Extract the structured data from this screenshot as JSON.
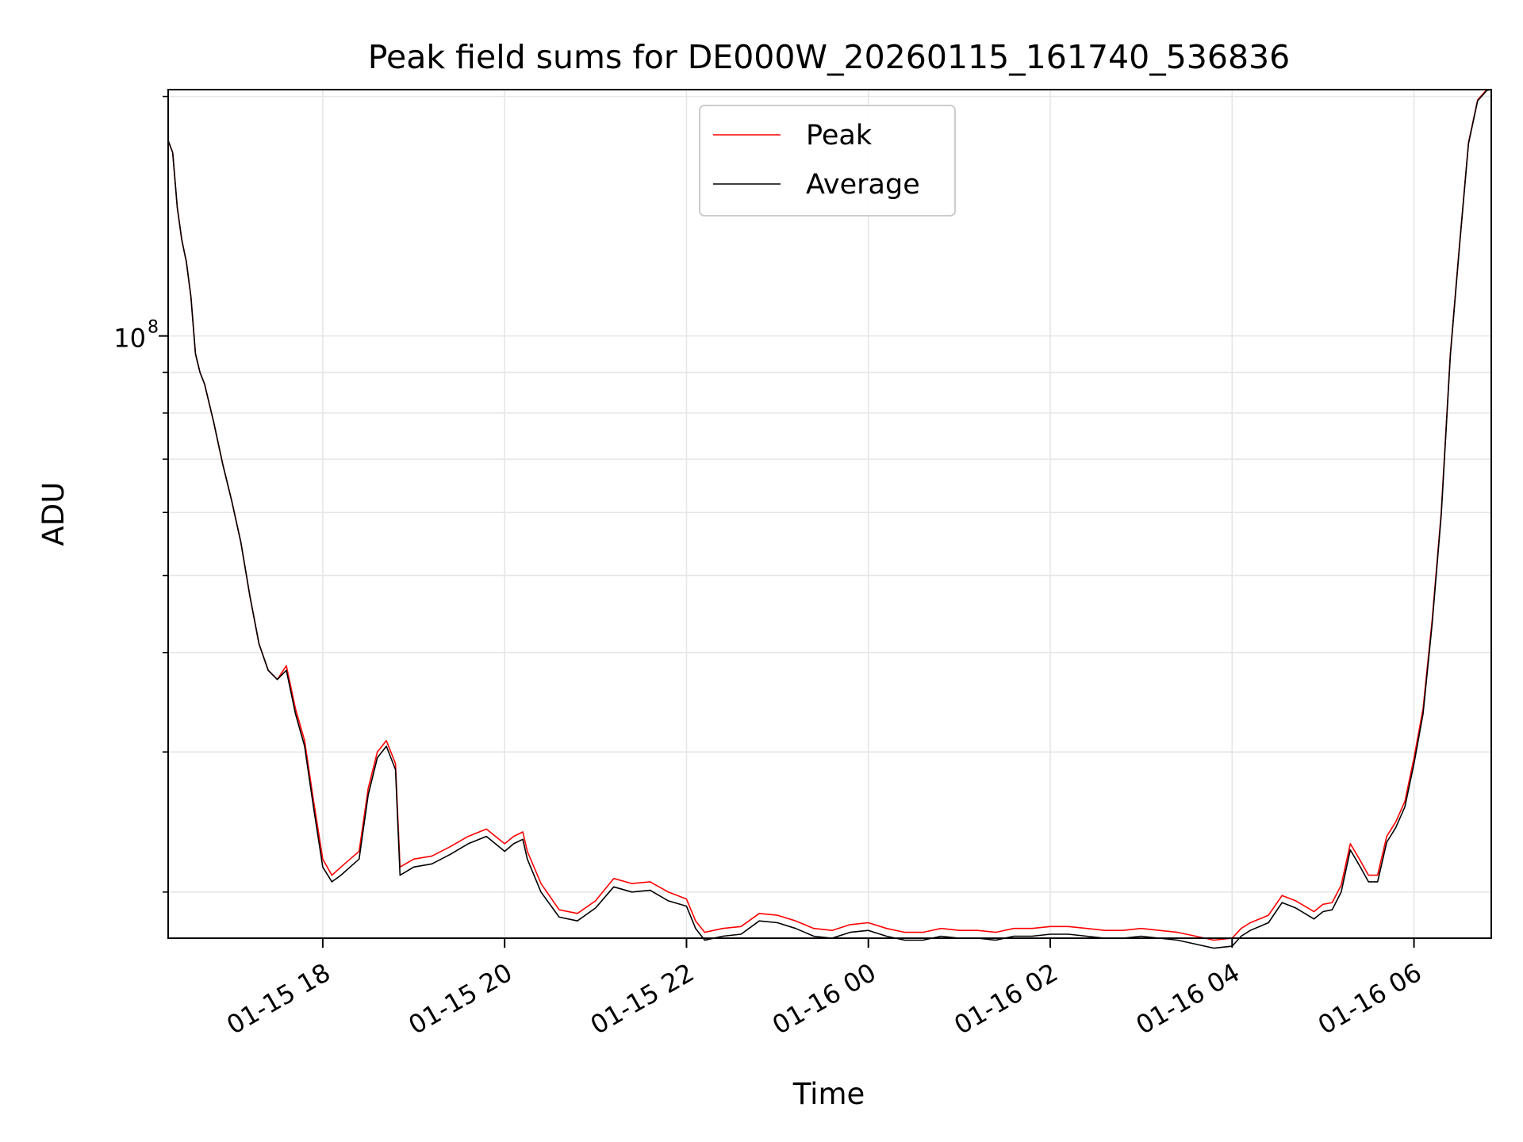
{
  "chart_data": {
    "type": "line",
    "title": "Peak field sums for DE000W_20260115_161740_536836",
    "xlabel": "Time",
    "ylabel": "ADU",
    "yscale": "log",
    "xlim_hours": [
      16.3,
      30.85
    ],
    "ylim": [
      17500000,
      204000000
    ],
    "grid": true,
    "legend_position": "upper center",
    "x_ticks": [
      {
        "label": "01-15 18",
        "hour": 18
      },
      {
        "label": "01-15 20",
        "hour": 20
      },
      {
        "label": "01-15 22",
        "hour": 22
      },
      {
        "label": "01-16 00",
        "hour": 24
      },
      {
        "label": "01-16 02",
        "hour": 26
      },
      {
        "label": "01-16 04",
        "hour": 28
      },
      {
        "label": "01-16 06",
        "hour": 30
      }
    ],
    "y_ticks": [
      {
        "label": "10",
        "sup": "8",
        "value": 100000000
      }
    ],
    "y_minor_ticks": [
      20000000,
      30000000,
      40000000,
      50000000,
      60000000,
      70000000,
      80000000,
      90000000,
      200000000
    ],
    "x_unit": "hours since 2026-01-15 00:00",
    "series": [
      {
        "name": "Peak",
        "color": "#ff0000",
        "points": [
          [
            16.3,
            176000000
          ],
          [
            16.35,
            170000000
          ],
          [
            16.4,
            145000000
          ],
          [
            16.45,
            132000000
          ],
          [
            16.5,
            124000000
          ],
          [
            16.55,
            112000000
          ],
          [
            16.6,
            95000000
          ],
          [
            16.65,
            90000000
          ],
          [
            16.7,
            87000000
          ],
          [
            16.8,
            78000000
          ],
          [
            16.9,
            69000000
          ],
          [
            17.0,
            62000000
          ],
          [
            17.1,
            55000000
          ],
          [
            17.2,
            47000000
          ],
          [
            17.3,
            41000000
          ],
          [
            17.4,
            38000000
          ],
          [
            17.5,
            37000000
          ],
          [
            17.6,
            38500000
          ],
          [
            17.7,
            34000000
          ],
          [
            17.8,
            31000000
          ],
          [
            17.9,
            26000000
          ],
          [
            18.0,
            22000000
          ],
          [
            18.1,
            21000000
          ],
          [
            18.2,
            21500000
          ],
          [
            18.3,
            22000000
          ],
          [
            18.4,
            22500000
          ],
          [
            18.5,
            27000000
          ],
          [
            18.6,
            30000000
          ],
          [
            18.7,
            31000000
          ],
          [
            18.8,
            29000000
          ],
          [
            18.85,
            21500000
          ],
          [
            19.0,
            22000000
          ],
          [
            19.2,
            22200000
          ],
          [
            19.4,
            22800000
          ],
          [
            19.6,
            23500000
          ],
          [
            19.8,
            24000000
          ],
          [
            20.0,
            23000000
          ],
          [
            20.1,
            23500000
          ],
          [
            20.2,
            23800000
          ],
          [
            20.25,
            22500000
          ],
          [
            20.4,
            20500000
          ],
          [
            20.6,
            19000000
          ],
          [
            20.8,
            18800000
          ],
          [
            21.0,
            19500000
          ],
          [
            21.2,
            20800000
          ],
          [
            21.4,
            20500000
          ],
          [
            21.6,
            20600000
          ],
          [
            21.8,
            20000000
          ],
          [
            22.0,
            19600000
          ],
          [
            22.1,
            18400000
          ],
          [
            22.2,
            17800000
          ],
          [
            22.4,
            18000000
          ],
          [
            22.6,
            18100000
          ],
          [
            22.8,
            18800000
          ],
          [
            23.0,
            18700000
          ],
          [
            23.2,
            18400000
          ],
          [
            23.4,
            18000000
          ],
          [
            23.6,
            17900000
          ],
          [
            23.8,
            18200000
          ],
          [
            24.0,
            18300000
          ],
          [
            24.2,
            18000000
          ],
          [
            24.4,
            17800000
          ],
          [
            24.6,
            17800000
          ],
          [
            24.8,
            18000000
          ],
          [
            25.0,
            17900000
          ],
          [
            25.2,
            17900000
          ],
          [
            25.4,
            17800000
          ],
          [
            25.6,
            18000000
          ],
          [
            25.8,
            18000000
          ],
          [
            26.0,
            18100000
          ],
          [
            26.2,
            18100000
          ],
          [
            26.4,
            18000000
          ],
          [
            26.6,
            17900000
          ],
          [
            26.8,
            17900000
          ],
          [
            27.0,
            18000000
          ],
          [
            27.2,
            17900000
          ],
          [
            27.4,
            17800000
          ],
          [
            27.6,
            17600000
          ],
          [
            27.8,
            17400000
          ],
          [
            28.0,
            17500000
          ],
          [
            28.1,
            18000000
          ],
          [
            28.2,
            18300000
          ],
          [
            28.4,
            18700000
          ],
          [
            28.55,
            19800000
          ],
          [
            28.7,
            19500000
          ],
          [
            28.9,
            18900000
          ],
          [
            29.0,
            19300000
          ],
          [
            29.1,
            19400000
          ],
          [
            29.2,
            20400000
          ],
          [
            29.3,
            23000000
          ],
          [
            29.4,
            22000000
          ],
          [
            29.5,
            21000000
          ],
          [
            29.6,
            21000000
          ],
          [
            29.7,
            23500000
          ],
          [
            29.8,
            24500000
          ],
          [
            29.9,
            26000000
          ],
          [
            30.0,
            29500000
          ],
          [
            30.1,
            34000000
          ],
          [
            30.2,
            44000000
          ],
          [
            30.3,
            60000000
          ],
          [
            30.4,
            95000000
          ],
          [
            30.5,
            130000000
          ],
          [
            30.6,
            175000000
          ],
          [
            30.7,
            198000000
          ],
          [
            30.8,
            204000000
          ],
          [
            30.85,
            204000000
          ]
        ]
      },
      {
        "name": "Average",
        "color": "#000000",
        "points": [
          [
            16.3,
            176000000
          ],
          [
            16.35,
            170000000
          ],
          [
            16.4,
            145000000
          ],
          [
            16.45,
            132000000
          ],
          [
            16.5,
            124000000
          ],
          [
            16.55,
            112000000
          ],
          [
            16.6,
            95000000
          ],
          [
            16.65,
            90000000
          ],
          [
            16.7,
            87000000
          ],
          [
            16.8,
            78000000
          ],
          [
            16.9,
            69000000
          ],
          [
            17.0,
            62000000
          ],
          [
            17.1,
            55000000
          ],
          [
            17.2,
            47000000
          ],
          [
            17.3,
            41000000
          ],
          [
            17.4,
            38000000
          ],
          [
            17.5,
            37000000
          ],
          [
            17.6,
            38000000
          ],
          [
            17.7,
            33500000
          ],
          [
            17.8,
            30500000
          ],
          [
            17.9,
            25500000
          ],
          [
            18.0,
            21500000
          ],
          [
            18.1,
            20600000
          ],
          [
            18.2,
            21000000
          ],
          [
            18.3,
            21500000
          ],
          [
            18.4,
            22000000
          ],
          [
            18.5,
            26500000
          ],
          [
            18.6,
            29500000
          ],
          [
            18.7,
            30500000
          ],
          [
            18.8,
            28500000
          ],
          [
            18.85,
            21000000
          ],
          [
            19.0,
            21500000
          ],
          [
            19.2,
            21700000
          ],
          [
            19.4,
            22300000
          ],
          [
            19.6,
            23000000
          ],
          [
            19.8,
            23500000
          ],
          [
            20.0,
            22500000
          ],
          [
            20.1,
            23000000
          ],
          [
            20.2,
            23300000
          ],
          [
            20.25,
            22000000
          ],
          [
            20.4,
            20000000
          ],
          [
            20.6,
            18600000
          ],
          [
            20.8,
            18400000
          ],
          [
            21.0,
            19100000
          ],
          [
            21.2,
            20300000
          ],
          [
            21.4,
            20000000
          ],
          [
            21.6,
            20100000
          ],
          [
            21.8,
            19500000
          ],
          [
            22.0,
            19200000
          ],
          [
            22.1,
            18000000
          ],
          [
            22.2,
            17400000
          ],
          [
            22.4,
            17600000
          ],
          [
            22.6,
            17700000
          ],
          [
            22.8,
            18400000
          ],
          [
            23.0,
            18300000
          ],
          [
            23.2,
            18000000
          ],
          [
            23.4,
            17600000
          ],
          [
            23.6,
            17500000
          ],
          [
            23.8,
            17800000
          ],
          [
            24.0,
            17900000
          ],
          [
            24.2,
            17600000
          ],
          [
            24.4,
            17400000
          ],
          [
            24.6,
            17400000
          ],
          [
            24.8,
            17600000
          ],
          [
            25.0,
            17500000
          ],
          [
            25.2,
            17500000
          ],
          [
            25.4,
            17400000
          ],
          [
            25.6,
            17600000
          ],
          [
            25.8,
            17600000
          ],
          [
            26.0,
            17700000
          ],
          [
            26.2,
            17700000
          ],
          [
            26.4,
            17600000
          ],
          [
            26.6,
            17500000
          ],
          [
            26.8,
            17500000
          ],
          [
            27.0,
            17600000
          ],
          [
            27.2,
            17500000
          ],
          [
            27.4,
            17400000
          ],
          [
            27.6,
            17200000
          ],
          [
            27.8,
            17000000
          ],
          [
            28.0,
            17100000
          ],
          [
            28.1,
            17600000
          ],
          [
            28.2,
            17900000
          ],
          [
            28.4,
            18300000
          ],
          [
            28.55,
            19400000
          ],
          [
            28.7,
            19100000
          ],
          [
            28.9,
            18500000
          ],
          [
            29.0,
            18900000
          ],
          [
            29.1,
            19000000
          ],
          [
            29.2,
            20000000
          ],
          [
            29.3,
            22600000
          ],
          [
            29.4,
            21600000
          ],
          [
            29.5,
            20600000
          ],
          [
            29.6,
            20600000
          ],
          [
            29.7,
            23100000
          ],
          [
            29.8,
            24100000
          ],
          [
            29.9,
            25600000
          ],
          [
            30.0,
            29000000
          ],
          [
            30.1,
            33500000
          ],
          [
            30.2,
            43500000
          ],
          [
            30.3,
            59500000
          ],
          [
            30.4,
            94500000
          ],
          [
            30.5,
            129500000
          ],
          [
            30.6,
            174500000
          ],
          [
            30.7,
            197500000
          ],
          [
            30.8,
            203500000
          ],
          [
            30.85,
            204000000
          ]
        ]
      }
    ]
  }
}
